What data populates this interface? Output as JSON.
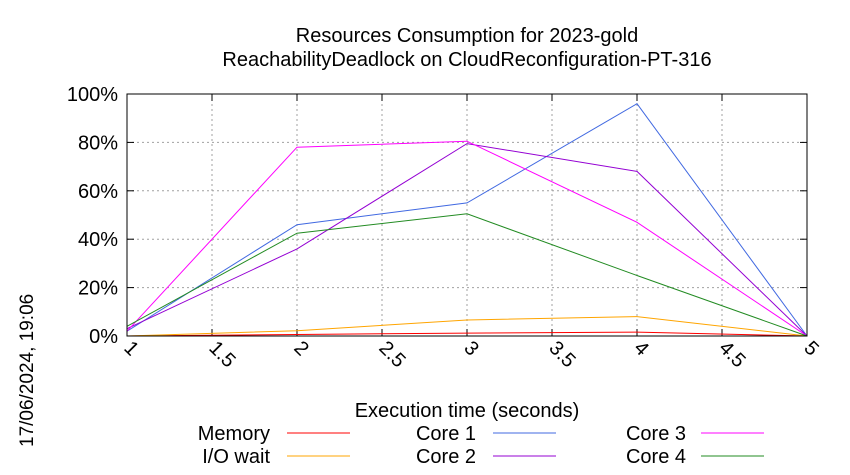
{
  "chart_data": {
    "type": "line",
    "title": "Resources Consumption for 2023-gold",
    "subtitle": "ReachabilityDeadlock on CloudReconfiguration-PT-316",
    "xlabel": "Execution time (seconds)",
    "ylabel": "",
    "xlim": [
      1,
      5
    ],
    "ylim": [
      0,
      100
    ],
    "x_ticks": [
      "1",
      "1.5",
      "2",
      "2.5",
      "3",
      "3.5",
      "4",
      "4.5",
      "5"
    ],
    "y_ticks": [
      "0%",
      "20%",
      "40%",
      "60%",
      "80%",
      "100%"
    ],
    "grid": true,
    "legend_position": "bottom",
    "series": [
      {
        "name": "Memory",
        "color": "#ff0000",
        "x": [
          1,
          2,
          3,
          4,
          5
        ],
        "values": [
          0,
          0.6,
          1.2,
          1.6,
          0
        ]
      },
      {
        "name": "I/O wait",
        "color": "#ffa500",
        "x": [
          1,
          2,
          3,
          4,
          5
        ],
        "values": [
          0,
          2.2,
          6.6,
          8.0,
          0
        ]
      },
      {
        "name": "Core 1",
        "color": "#4169e1",
        "x": [
          1,
          2,
          3,
          4,
          5
        ],
        "values": [
          2,
          46,
          55,
          96,
          0
        ]
      },
      {
        "name": "Core 2",
        "color": "#9400d3",
        "x": [
          1,
          2,
          3,
          4,
          5
        ],
        "values": [
          3,
          36,
          79.5,
          68,
          0
        ]
      },
      {
        "name": "Core 3",
        "color": "#ff00ff",
        "x": [
          1,
          2,
          3,
          4,
          5
        ],
        "values": [
          2,
          78,
          80.5,
          47,
          0
        ]
      },
      {
        "name": "Core 4",
        "color": "#228b22",
        "x": [
          1,
          2,
          3,
          4,
          5
        ],
        "values": [
          4,
          42.5,
          50.5,
          25,
          0
        ]
      }
    ]
  },
  "timestamp": "17/06/2024, 19:06"
}
